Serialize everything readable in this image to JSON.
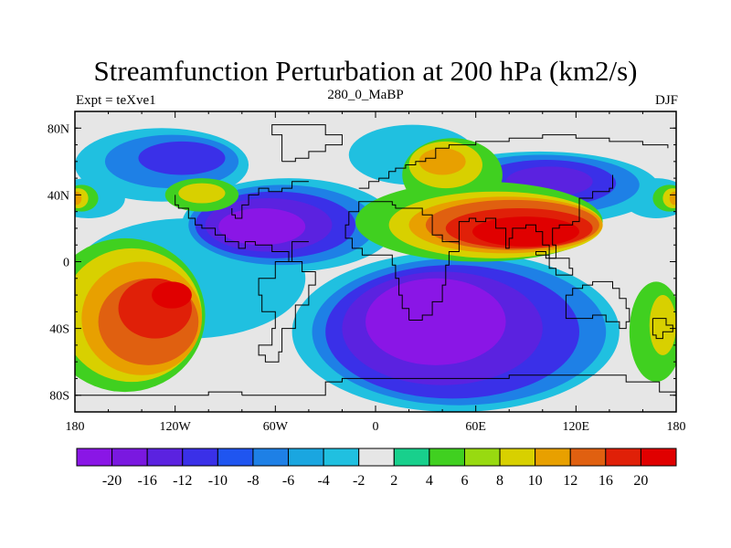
{
  "header": {
    "title": "Streamfunction Perturbation at 200 hPa (km2/s)",
    "left_label": "Expt = teXve1",
    "center_label": "280_0_MaBP",
    "right_label": "DJF"
  },
  "map": {
    "lat_ticks": [
      "80N",
      "40N",
      "0",
      "40S",
      "80S"
    ],
    "lon_ticks": [
      "180",
      "120W",
      "60W",
      "0",
      "60E",
      "120E",
      "180"
    ],
    "background_color": "#e6e6e6"
  },
  "colorbar": {
    "labels": [
      "-20",
      "-16",
      "-12",
      "-10",
      "-8",
      "-6",
      "-4",
      "-2",
      "2",
      "4",
      "6",
      "8",
      "10",
      "12",
      "16",
      "20"
    ],
    "colors": [
      "#8a16e6",
      "#7a18e0",
      "#5b22e0",
      "#3a30e8",
      "#1f55f0",
      "#1e80e6",
      "#1aa6e0",
      "#20c0e0",
      "#e6e6e6",
      "#18d08c",
      "#40d020",
      "#98da10",
      "#d8d000",
      "#e8a000",
      "#e06010",
      "#e02008",
      "#e00000"
    ]
  },
  "regions": [
    {
      "color": "#20c0e0",
      "ellipses": [
        [
          -128,
          58,
          52,
          22
        ],
        [
          22,
          64,
          38,
          18
        ],
        [
          98,
          44,
          72,
          22
        ],
        [
          -52,
          22,
          64,
          28
        ],
        [
          -112,
          -10,
          70,
          36
        ],
        [
          48,
          -42,
          98,
          48
        ],
        [
          -172,
          38,
          22,
          12
        ],
        [
          168,
          38,
          20,
          12
        ]
      ]
    },
    {
      "color": "#1e80e6",
      "ellipses": [
        [
          -122,
          60,
          40,
          16
        ],
        [
          100,
          46,
          58,
          18
        ],
        [
          -56,
          22,
          56,
          24
        ],
        [
          50,
          -42,
          88,
          44
        ]
      ]
    },
    {
      "color": "#3a30e8",
      "ellipses": [
        [
          -116,
          62,
          26,
          10
        ],
        [
          102,
          47,
          42,
          14
        ],
        [
          -60,
          22,
          48,
          20
        ],
        [
          46,
          -42,
          76,
          40
        ]
      ]
    },
    {
      "color": "#5b22e0",
      "ellipses": [
        [
          104,
          48,
          26,
          9
        ],
        [
          -64,
          22,
          38,
          16
        ],
        [
          40,
          -40,
          60,
          34
        ]
      ]
    },
    {
      "color": "#8a16e6",
      "ellipses": [
        [
          -68,
          21,
          26,
          11
        ],
        [
          36,
          -36,
          42,
          26
        ]
      ]
    },
    {
      "color": "#40d020",
      "ellipses": [
        [
          -150,
          -32,
          48,
          46
        ],
        [
          62,
          24,
          74,
          24
        ],
        [
          46,
          52,
          30,
          22
        ],
        [
          -104,
          40,
          22,
          10
        ],
        [
          -176,
          38,
          10,
          8
        ],
        [
          176,
          38,
          10,
          8
        ],
        [
          168,
          -42,
          16,
          30
        ]
      ]
    },
    {
      "color": "#d8d000",
      "ellipses": [
        [
          -146,
          -32,
          42,
          40
        ],
        [
          72,
          22,
          64,
          20
        ],
        [
          42,
          58,
          22,
          14
        ],
        [
          -104,
          41,
          14,
          6
        ],
        [
          -178,
          38,
          6,
          6
        ],
        [
          178,
          38,
          6,
          6
        ],
        [
          172,
          -38,
          8,
          18
        ]
      ]
    },
    {
      "color": "#e8a000",
      "ellipses": [
        [
          -140,
          -34,
          36,
          34
        ],
        [
          78,
          22,
          58,
          17
        ],
        [
          40,
          60,
          14,
          8
        ],
        [
          179,
          38,
          3,
          4
        ],
        [
          -179,
          38,
          3,
          4
        ]
      ]
    },
    {
      "color": "#e06010",
      "ellipses": [
        [
          -136,
          -36,
          30,
          26
        ],
        [
          82,
          22,
          52,
          15
        ]
      ]
    },
    {
      "color": "#e02008",
      "ellipses": [
        [
          -132,
          -28,
          22,
          18
        ],
        [
          86,
          20,
          44,
          12
        ]
      ]
    },
    {
      "color": "#e00000",
      "ellipses": [
        [
          -122,
          -20,
          12,
          8
        ],
        [
          90,
          18,
          32,
          9
        ]
      ]
    }
  ],
  "coastlines": [
    [
      [
        -80,
        -80
      ],
      [
        -40,
        -80
      ],
      [
        -30,
        -72
      ],
      [
        -20,
        -70
      ],
      [
        0,
        -70
      ],
      [
        20,
        -70
      ],
      [
        40,
        -70
      ],
      [
        60,
        -70
      ],
      [
        80,
        -68
      ],
      [
        110,
        -68
      ],
      [
        130,
        -68
      ],
      [
        150,
        -72
      ],
      [
        170,
        -78
      ],
      [
        180,
        -80
      ]
    ],
    [
      [
        -180,
        -80
      ],
      [
        -120,
        -80
      ],
      [
        -100,
        -78
      ],
      [
        -80,
        -80
      ]
    ],
    [
      [
        -40,
        12
      ],
      [
        -50,
        0
      ],
      [
        -60,
        -10
      ],
      [
        -70,
        -20
      ],
      [
        -68,
        -30
      ],
      [
        -60,
        -40
      ],
      [
        -62,
        -50
      ],
      [
        -70,
        -56
      ],
      [
        -66,
        -60
      ],
      [
        -58,
        -54
      ],
      [
        -56,
        -40
      ],
      [
        -48,
        -26
      ],
      [
        -40,
        -14
      ],
      [
        -36,
        -6
      ],
      [
        -44,
        0
      ],
      [
        -52,
        6
      ],
      [
        -62,
        10
      ],
      [
        -72,
        12
      ],
      [
        -78,
        8
      ],
      [
        -82,
        12
      ],
      [
        -90,
        16
      ],
      [
        -96,
        20
      ],
      [
        -104,
        22
      ],
      [
        -108,
        26
      ],
      [
        -112,
        32
      ],
      [
        -118,
        34
      ],
      [
        -120,
        40
      ]
    ],
    [
      [
        -40,
        48
      ],
      [
        -50,
        44
      ],
      [
        -56,
        42
      ],
      [
        -64,
        44
      ],
      [
        -70,
        40
      ],
      [
        -76,
        34
      ],
      [
        -80,
        26
      ],
      [
        -84,
        28
      ],
      [
        -86,
        32
      ]
    ],
    [
      [
        20,
        -35
      ],
      [
        28,
        -32
      ],
      [
        34,
        -24
      ],
      [
        40,
        -14
      ],
      [
        42,
        -2
      ],
      [
        44,
        6
      ],
      [
        50,
        12
      ],
      [
        44,
        12
      ],
      [
        40,
        16
      ],
      [
        34,
        28
      ],
      [
        28,
        32
      ],
      [
        20,
        32
      ],
      [
        12,
        34
      ],
      [
        10,
        36
      ],
      [
        0,
        36
      ],
      [
        -8,
        36
      ],
      [
        -10,
        30
      ],
      [
        -16,
        22
      ],
      [
        -18,
        14
      ],
      [
        -14,
        8
      ],
      [
        -8,
        4
      ],
      [
        0,
        4
      ],
      [
        8,
        4
      ],
      [
        10,
        -2
      ],
      [
        12,
        -10
      ],
      [
        14,
        -20
      ],
      [
        16,
        -28
      ],
      [
        20,
        -35
      ]
    ],
    [
      [
        -10,
        44
      ],
      [
        -4,
        48
      ],
      [
        2,
        50
      ],
      [
        8,
        54
      ],
      [
        12,
        56
      ],
      [
        18,
        58
      ],
      [
        24,
        60
      ],
      [
        30,
        62
      ],
      [
        36,
        68
      ],
      [
        44,
        70
      ],
      [
        60,
        72
      ],
      [
        80,
        74
      ],
      [
        100,
        76
      ],
      [
        120,
        74
      ],
      [
        140,
        72
      ],
      [
        160,
        70
      ],
      [
        175,
        68
      ]
    ],
    [
      [
        44,
        12
      ],
      [
        50,
        24
      ],
      [
        56,
        26
      ],
      [
        60,
        24
      ],
      [
        66,
        26
      ],
      [
        72,
        20
      ],
      [
        78,
        8
      ],
      [
        80,
        14
      ],
      [
        82,
        20
      ],
      [
        90,
        22
      ],
      [
        96,
        18
      ],
      [
        100,
        10
      ],
      [
        104,
        2
      ],
      [
        108,
        10
      ],
      [
        106,
        20
      ],
      [
        110,
        22
      ],
      [
        118,
        24
      ],
      [
        122,
        30
      ],
      [
        122,
        38
      ],
      [
        128,
        38
      ],
      [
        130,
        42
      ],
      [
        140,
        44
      ],
      [
        142,
        52
      ]
    ],
    [
      [
        114,
        -22
      ],
      [
        114,
        -34
      ],
      [
        120,
        -34
      ],
      [
        130,
        -32
      ],
      [
        138,
        -36
      ],
      [
        146,
        -40
      ],
      [
        150,
        -36
      ],
      [
        152,
        -28
      ],
      [
        150,
        -22
      ],
      [
        146,
        -16
      ],
      [
        142,
        -12
      ],
      [
        136,
        -12
      ],
      [
        130,
        -14
      ],
      [
        124,
        -16
      ],
      [
        118,
        -20
      ],
      [
        114,
        -22
      ]
    ],
    [
      [
        166,
        -34
      ],
      [
        174,
        -38
      ],
      [
        178,
        -42
      ],
      [
        172,
        -46
      ],
      [
        168,
        -44
      ],
      [
        166,
        -34
      ]
    ],
    [
      [
        -56,
        60
      ],
      [
        -48,
        62
      ],
      [
        -40,
        66
      ],
      [
        -30,
        70
      ],
      [
        -20,
        76
      ],
      [
        -30,
        82
      ],
      [
        -50,
        82
      ],
      [
        -62,
        76
      ],
      [
        -56,
        60
      ]
    ],
    [
      [
        96,
        4
      ],
      [
        104,
        -4
      ],
      [
        108,
        -8
      ],
      [
        114,
        -8
      ],
      [
        118,
        -4
      ],
      [
        116,
        2
      ],
      [
        110,
        2
      ],
      [
        102,
        6
      ],
      [
        96,
        4
      ]
    ]
  ]
}
